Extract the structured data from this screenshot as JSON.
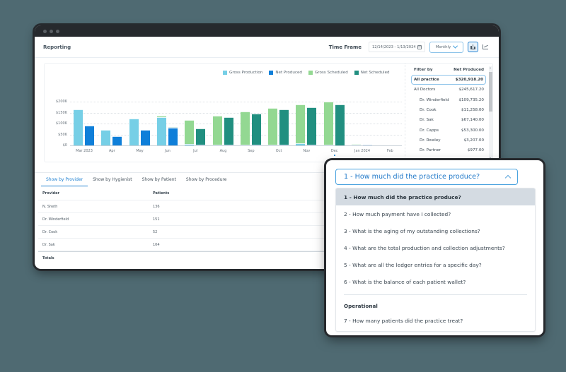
{
  "window": {
    "title": "Reporting"
  },
  "header": {
    "time_frame_label": "Time Frame",
    "date_range": "12/14/2023 - 1/13/2024",
    "period": "Monthly",
    "view_modes": [
      "bar-chart",
      "line-chart"
    ],
    "active_view": "bar-chart"
  },
  "colors": {
    "gross_production": "#76cfe6",
    "net_produced": "#0f7fd9",
    "gross_scheduled": "#93d892",
    "net_scheduled": "#218f80",
    "accent": "#1f80d1",
    "background": "#4f6a72"
  },
  "chart_data": {
    "type": "bar",
    "title": "",
    "xlabel": "",
    "ylabel": "",
    "ylim": [
      0,
      200000
    ],
    "y_ticks": [
      "$0",
      "$50K",
      "$100K",
      "$150K",
      "$200K"
    ],
    "grid": true,
    "legend_position": "top-right",
    "categories": [
      "Mar 2023",
      "Apr",
      "May",
      "Jun",
      "Jul",
      "Aug",
      "Sep",
      "Oct",
      "Nov",
      "Dec",
      "Jan 2024",
      "Feb"
    ],
    "series": [
      {
        "name": "Gross Production",
        "stack": "gross",
        "values": [
          165000,
          70000,
          122000,
          130000,
          6000,
          3000,
          3000,
          4000,
          10000,
          2000,
          1000,
          0
        ]
      },
      {
        "name": "Net Produced",
        "stack": "net",
        "values": [
          90000,
          42000,
          71000,
          82000,
          3000,
          3000,
          1000,
          1000,
          4000,
          0,
          1000,
          0
        ]
      },
      {
        "name": "Gross Scheduled",
        "stack": "gross",
        "values": [
          0,
          0,
          0,
          7000,
          109000,
          132000,
          152000,
          168000,
          178000,
          198000,
          1000,
          0
        ]
      },
      {
        "name": "Net Scheduled",
        "stack": "net",
        "values": [
          0,
          0,
          0,
          3000,
          74000,
          125000,
          141000,
          161000,
          171000,
          187000,
          0,
          0
        ]
      }
    ]
  },
  "filter_panel": {
    "col_filter": "Filter by",
    "col_value": "Net Produced",
    "rows": [
      {
        "name": "All practice",
        "value": "$320,918.20",
        "selected": true,
        "indent": false
      },
      {
        "name": "All Doctors",
        "value": "$245,617.20",
        "selected": false,
        "indent": false
      },
      {
        "name": "Dr. Winderfield",
        "value": "$109,735.20",
        "selected": false,
        "indent": true
      },
      {
        "name": "Dr. Cook",
        "value": "$11,258.00",
        "selected": false,
        "indent": true
      },
      {
        "name": "Dr. Sak",
        "value": "$67,140.00",
        "selected": false,
        "indent": true
      },
      {
        "name": "Dr. Capps",
        "value": "$53,300.00",
        "selected": false,
        "indent": true
      },
      {
        "name": "Dr. Rowley",
        "value": "$3,207.00",
        "selected": false,
        "indent": true
      },
      {
        "name": "Dr. Partner",
        "value": "$977.00",
        "selected": false,
        "indent": true
      }
    ]
  },
  "tabs": [
    {
      "label": "Show by Provider",
      "active": true
    },
    {
      "label": "Show by Hygienist",
      "active": false
    },
    {
      "label": "Show by Patient",
      "active": false
    },
    {
      "label": "Show by Procedure",
      "active": false
    }
  ],
  "table": {
    "headers": [
      "Provider",
      "Patients"
    ],
    "rows": [
      [
        "N. Sheth",
        "136"
      ],
      [
        "Dr. Winderfield",
        "151"
      ],
      [
        "Dr. Cook",
        "52"
      ],
      [
        "Dr. Sak",
        "104"
      ]
    ],
    "totals_label": "Totals"
  },
  "question_dropdown": {
    "selected": "1 - How much did the practice produce?",
    "options": [
      "1 - How much did the practice produce?",
      "2 - How much payment have I collected?",
      "3 - What is the aging of my outstanding collections?",
      "4 - What are the total production and collection adjustments?",
      "5 - What are all the ledger entries for a specific day?",
      "6 - What is the balance of each patient wallet?"
    ],
    "group_label": "Operational",
    "group_options": [
      "7 - How many patients did the practice treat?"
    ]
  }
}
